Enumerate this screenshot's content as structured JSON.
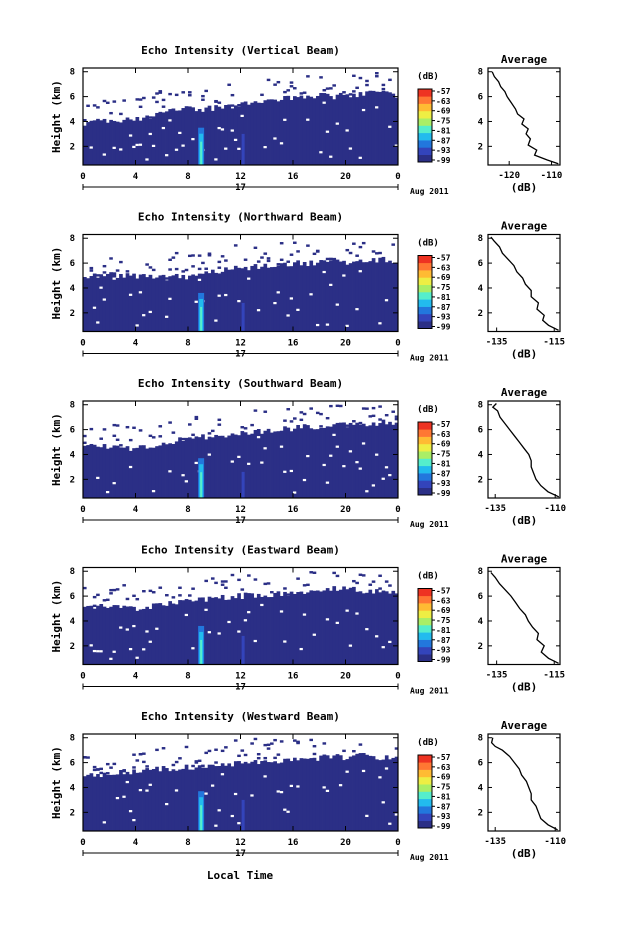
{
  "colors": {
    "background": "#ffffff",
    "no_data": "#ffffff",
    "colorscale": [
      "#2b2f86",
      "#3344bb",
      "#2277dd",
      "#22bbee",
      "#55eecc",
      "#aaee66",
      "#eeee44",
      "#ffbb33",
      "#ff7733",
      "#ee3322"
    ]
  },
  "chart_data": [
    {
      "type": "heatmap",
      "title": "Echo Intensity (Vertical Beam)",
      "ylabel": "Height (km)",
      "x_ticks": [
        "0",
        "4",
        "8",
        "12",
        "16",
        "20",
        "0"
      ],
      "x_range": [
        0,
        24
      ],
      "y_ticks": [
        "2",
        "4",
        "6",
        "8"
      ],
      "y_range": [
        0.5,
        8.3
      ],
      "date_day": "17",
      "date_month_year": "Aug 2011",
      "colorbar": {
        "unit": "(dB)",
        "levels": [
          "-57",
          "-63",
          "-69",
          "-75",
          "-81",
          "-87",
          "-93",
          "-99"
        ]
      },
      "echo_top_km": [
        3.9,
        4.0,
        4.0,
        4.1,
        4.2,
        4.3,
        4.6,
        4.9,
        5.0,
        5.0,
        5.1,
        5.2,
        5.3,
        5.5,
        5.6,
        5.8,
        5.9,
        6.0,
        6.1,
        6.0,
        6.1,
        6.2,
        6.3,
        6.3,
        6.0
      ],
      "enhancements": [
        {
          "time": 9.0,
          "top_km": 3.5,
          "label": "strong"
        },
        {
          "time": 12.2,
          "top_km": 3.0,
          "label": "weak"
        }
      ],
      "average_profile": {
        "title": "Average",
        "xlabel": "(dB)",
        "x_ticks": [
          "-120",
          "-110"
        ],
        "x_range": [
          -125,
          -108
        ],
        "y_ticks": [
          "2",
          "4",
          "6",
          "8"
        ],
        "y_range": [
          0.5,
          8.3
        ],
        "points": [
          [
            -108.4,
            0.6
          ],
          [
            -111,
            0.9
          ],
          [
            -114,
            1.3
          ],
          [
            -113.5,
            1.7
          ],
          [
            -115.5,
            2.1
          ],
          [
            -115,
            2.6
          ],
          [
            -116,
            3.0
          ],
          [
            -115.5,
            3.4
          ],
          [
            -117,
            3.8
          ],
          [
            -116.5,
            4.2
          ],
          [
            -118,
            4.6
          ],
          [
            -118.5,
            5.0
          ],
          [
            -119.5,
            5.5
          ],
          [
            -120.5,
            6.0
          ],
          [
            -121,
            6.4
          ],
          [
            -122,
            6.8
          ],
          [
            -122.5,
            7.2
          ],
          [
            -123.5,
            7.6
          ],
          [
            -124,
            8.0
          ]
        ]
      }
    },
    {
      "type": "heatmap",
      "title": "Echo Intensity (Northward Beam)",
      "ylabel": "Height (km)",
      "x_ticks": [
        "0",
        "4",
        "8",
        "12",
        "16",
        "20",
        "0"
      ],
      "x_range": [
        0,
        24
      ],
      "y_ticks": [
        "2",
        "4",
        "6",
        "8"
      ],
      "y_range": [
        0.5,
        8.3
      ],
      "date_day": "17",
      "date_month_year": "Aug 2011",
      "colorbar": {
        "unit": "(dB)",
        "levels": [
          "-57",
          "-63",
          "-69",
          "-75",
          "-81",
          "-87",
          "-93",
          "-99"
        ]
      },
      "echo_top_km": [
        4.8,
        5.0,
        5.1,
        5.0,
        4.9,
        4.9,
        4.8,
        4.9,
        4.9,
        5.1,
        5.3,
        5.5,
        5.6,
        5.7,
        5.8,
        5.9,
        6.0,
        6.0,
        6.1,
        6.2,
        6.1,
        6.2,
        6.2,
        6.3,
        6.2
      ],
      "enhancements": [
        {
          "time": 9.0,
          "top_km": 3.6,
          "label": "strong"
        },
        {
          "time": 12.2,
          "top_km": 2.8,
          "label": "weak"
        }
      ],
      "average_profile": {
        "title": "Average",
        "xlabel": "(dB)",
        "x_ticks": [
          "-135",
          "-115"
        ],
        "x_range": [
          -138,
          -113
        ],
        "y_ticks": [
          "2",
          "4",
          "6",
          "8"
        ],
        "y_range": [
          0.5,
          8.3
        ],
        "points": [
          [
            -113.5,
            0.6
          ],
          [
            -117,
            1.0
          ],
          [
            -119,
            1.4
          ],
          [
            -118.5,
            1.8
          ],
          [
            -121,
            2.3
          ],
          [
            -120.5,
            2.8
          ],
          [
            -123,
            3.3
          ],
          [
            -123,
            3.8
          ],
          [
            -125,
            4.3
          ],
          [
            -126,
            4.8
          ],
          [
            -128,
            5.3
          ],
          [
            -129,
            5.8
          ],
          [
            -131,
            6.3
          ],
          [
            -133,
            6.8
          ],
          [
            -134,
            7.3
          ],
          [
            -136,
            7.8
          ],
          [
            -137,
            8.1
          ]
        ]
      }
    },
    {
      "type": "heatmap",
      "title": "Echo Intensity (Southward Beam)",
      "ylabel": "Height (km)",
      "x_ticks": [
        "0",
        "4",
        "8",
        "12",
        "16",
        "20",
        "0"
      ],
      "x_range": [
        0,
        24
      ],
      "y_ticks": [
        "2",
        "4",
        "6",
        "8"
      ],
      "y_range": [
        0.5,
        8.3
      ],
      "date_day": "17",
      "date_month_year": "Aug 2011",
      "colorbar": {
        "unit": "(dB)",
        "levels": [
          "-57",
          "-63",
          "-69",
          "-75",
          "-81",
          "-87",
          "-93",
          "-99"
        ]
      },
      "echo_top_km": [
        4.6,
        4.8,
        4.7,
        4.6,
        4.5,
        4.7,
        4.9,
        5.1,
        5.2,
        5.4,
        5.5,
        5.6,
        5.7,
        5.8,
        5.9,
        6.0,
        6.1,
        6.2,
        6.3,
        6.4,
        6.4,
        6.3,
        6.5,
        6.6,
        6.4
      ],
      "enhancements": [
        {
          "time": 9.0,
          "top_km": 3.7,
          "label": "strong"
        },
        {
          "time": 12.2,
          "top_km": 2.6,
          "label": "weak"
        }
      ],
      "average_profile": {
        "title": "Average",
        "xlabel": "(dB)",
        "x_ticks": [
          "-135",
          "-110"
        ],
        "x_range": [
          -138,
          -108
        ],
        "y_ticks": [
          "2",
          "4",
          "6",
          "8"
        ],
        "y_range": [
          0.5,
          8.3
        ],
        "points": [
          [
            -108.5,
            0.6
          ],
          [
            -113,
            1.0
          ],
          [
            -116,
            1.5
          ],
          [
            -118,
            2.0
          ],
          [
            -119,
            2.5
          ],
          [
            -120,
            3.0
          ],
          [
            -120,
            3.5
          ],
          [
            -121,
            4.0
          ],
          [
            -123,
            4.5
          ],
          [
            -125,
            5.0
          ],
          [
            -127,
            5.5
          ],
          [
            -129,
            6.0
          ],
          [
            -131,
            6.5
          ],
          [
            -133,
            7.0
          ],
          [
            -134,
            7.5
          ],
          [
            -136,
            7.8
          ],
          [
            -134.5,
            8.1
          ]
        ]
      }
    },
    {
      "type": "heatmap",
      "title": "Echo Intensity (Eastward Beam)",
      "ylabel": "Height (km)",
      "x_ticks": [
        "0",
        "4",
        "8",
        "12",
        "16",
        "20",
        "0"
      ],
      "x_range": [
        0,
        24
      ],
      "y_ticks": [
        "2",
        "4",
        "6",
        "8"
      ],
      "y_range": [
        0.5,
        8.3
      ],
      "date_day": "17",
      "date_month_year": "Aug 2011",
      "colorbar": {
        "unit": "(dB)",
        "levels": [
          "-57",
          "-63",
          "-69",
          "-75",
          "-81",
          "-87",
          "-93",
          "-99"
        ]
      },
      "echo_top_km": [
        5.0,
        5.1,
        5.2,
        5.0,
        4.9,
        5.1,
        5.3,
        5.5,
        5.6,
        5.7,
        5.8,
        5.9,
        6.0,
        6.1,
        6.1,
        6.2,
        6.3,
        6.4,
        6.5,
        6.7,
        6.6,
        6.5,
        6.4,
        6.3,
        6.2
      ],
      "enhancements": [
        {
          "time": 9.0,
          "top_km": 3.6,
          "label": "strong"
        },
        {
          "time": 12.2,
          "top_km": 2.8,
          "label": "weak"
        }
      ],
      "average_profile": {
        "title": "Average",
        "xlabel": "(dB)",
        "x_ticks": [
          "-135",
          "-115"
        ],
        "x_range": [
          -138,
          -113
        ],
        "y_ticks": [
          "2",
          "4",
          "6",
          "8"
        ],
        "y_range": [
          0.5,
          8.3
        ],
        "points": [
          [
            -113.5,
            0.6
          ],
          [
            -117,
            1.0
          ],
          [
            -119.5,
            1.5
          ],
          [
            -118.5,
            2.0
          ],
          [
            -121,
            2.5
          ],
          [
            -120.5,
            3.0
          ],
          [
            -122.5,
            3.5
          ],
          [
            -124,
            4.0
          ],
          [
            -125,
            4.5
          ],
          [
            -127,
            5.0
          ],
          [
            -128.5,
            5.5
          ],
          [
            -130,
            6.0
          ],
          [
            -132,
            6.5
          ],
          [
            -134,
            7.0
          ],
          [
            -135.5,
            7.5
          ],
          [
            -137,
            7.9
          ]
        ]
      }
    },
    {
      "type": "heatmap",
      "title": "Echo Intensity (Westward Beam)",
      "ylabel": "Height (km)",
      "x_ticks": [
        "0",
        "4",
        "8",
        "12",
        "16",
        "20",
        "0"
      ],
      "x_range": [
        0,
        24
      ],
      "y_ticks": [
        "2",
        "4",
        "6",
        "8"
      ],
      "y_range": [
        0.5,
        8.3
      ],
      "date_day": "17",
      "date_month_year": "Aug 2011",
      "colorbar": {
        "unit": "(dB)",
        "levels": [
          "-57",
          "-63",
          "-69",
          "-75",
          "-81",
          "-87",
          "-93",
          "-99"
        ]
      },
      "echo_top_km": [
        5.0,
        5.1,
        5.0,
        5.2,
        5.3,
        5.4,
        5.5,
        5.5,
        5.6,
        5.7,
        5.8,
        5.9,
        6.0,
        6.1,
        6.1,
        6.2,
        6.3,
        6.2,
        6.4,
        6.5,
        6.4,
        6.6,
        6.5,
        6.4,
        6.3
      ],
      "enhancements": [
        {
          "time": 9.0,
          "top_km": 3.7,
          "label": "strong"
        },
        {
          "time": 12.2,
          "top_km": 3.0,
          "label": "weak"
        }
      ],
      "average_profile": {
        "title": "Average",
        "xlabel": "(dB)",
        "x_ticks": [
          "-135",
          "-110"
        ],
        "x_range": [
          -138,
          -108
        ],
        "y_ticks": [
          "2",
          "4",
          "6",
          "8"
        ],
        "y_range": [
          0.5,
          8.3
        ],
        "points": [
          [
            -109,
            0.6
          ],
          [
            -113,
            1.0
          ],
          [
            -116,
            1.5
          ],
          [
            -117,
            2.0
          ],
          [
            -118,
            2.5
          ],
          [
            -120,
            3.0
          ],
          [
            -120,
            3.5
          ],
          [
            -121,
            4.0
          ],
          [
            -122,
            4.5
          ],
          [
            -124,
            5.0
          ],
          [
            -125,
            5.5
          ],
          [
            -127,
            6.0
          ],
          [
            -129,
            6.5
          ],
          [
            -132,
            7.0
          ],
          [
            -135,
            7.3
          ],
          [
            -136.5,
            7.6
          ],
          [
            -136,
            8.0
          ]
        ]
      }
    }
  ],
  "footer": {
    "xlabel": "Local Time"
  }
}
